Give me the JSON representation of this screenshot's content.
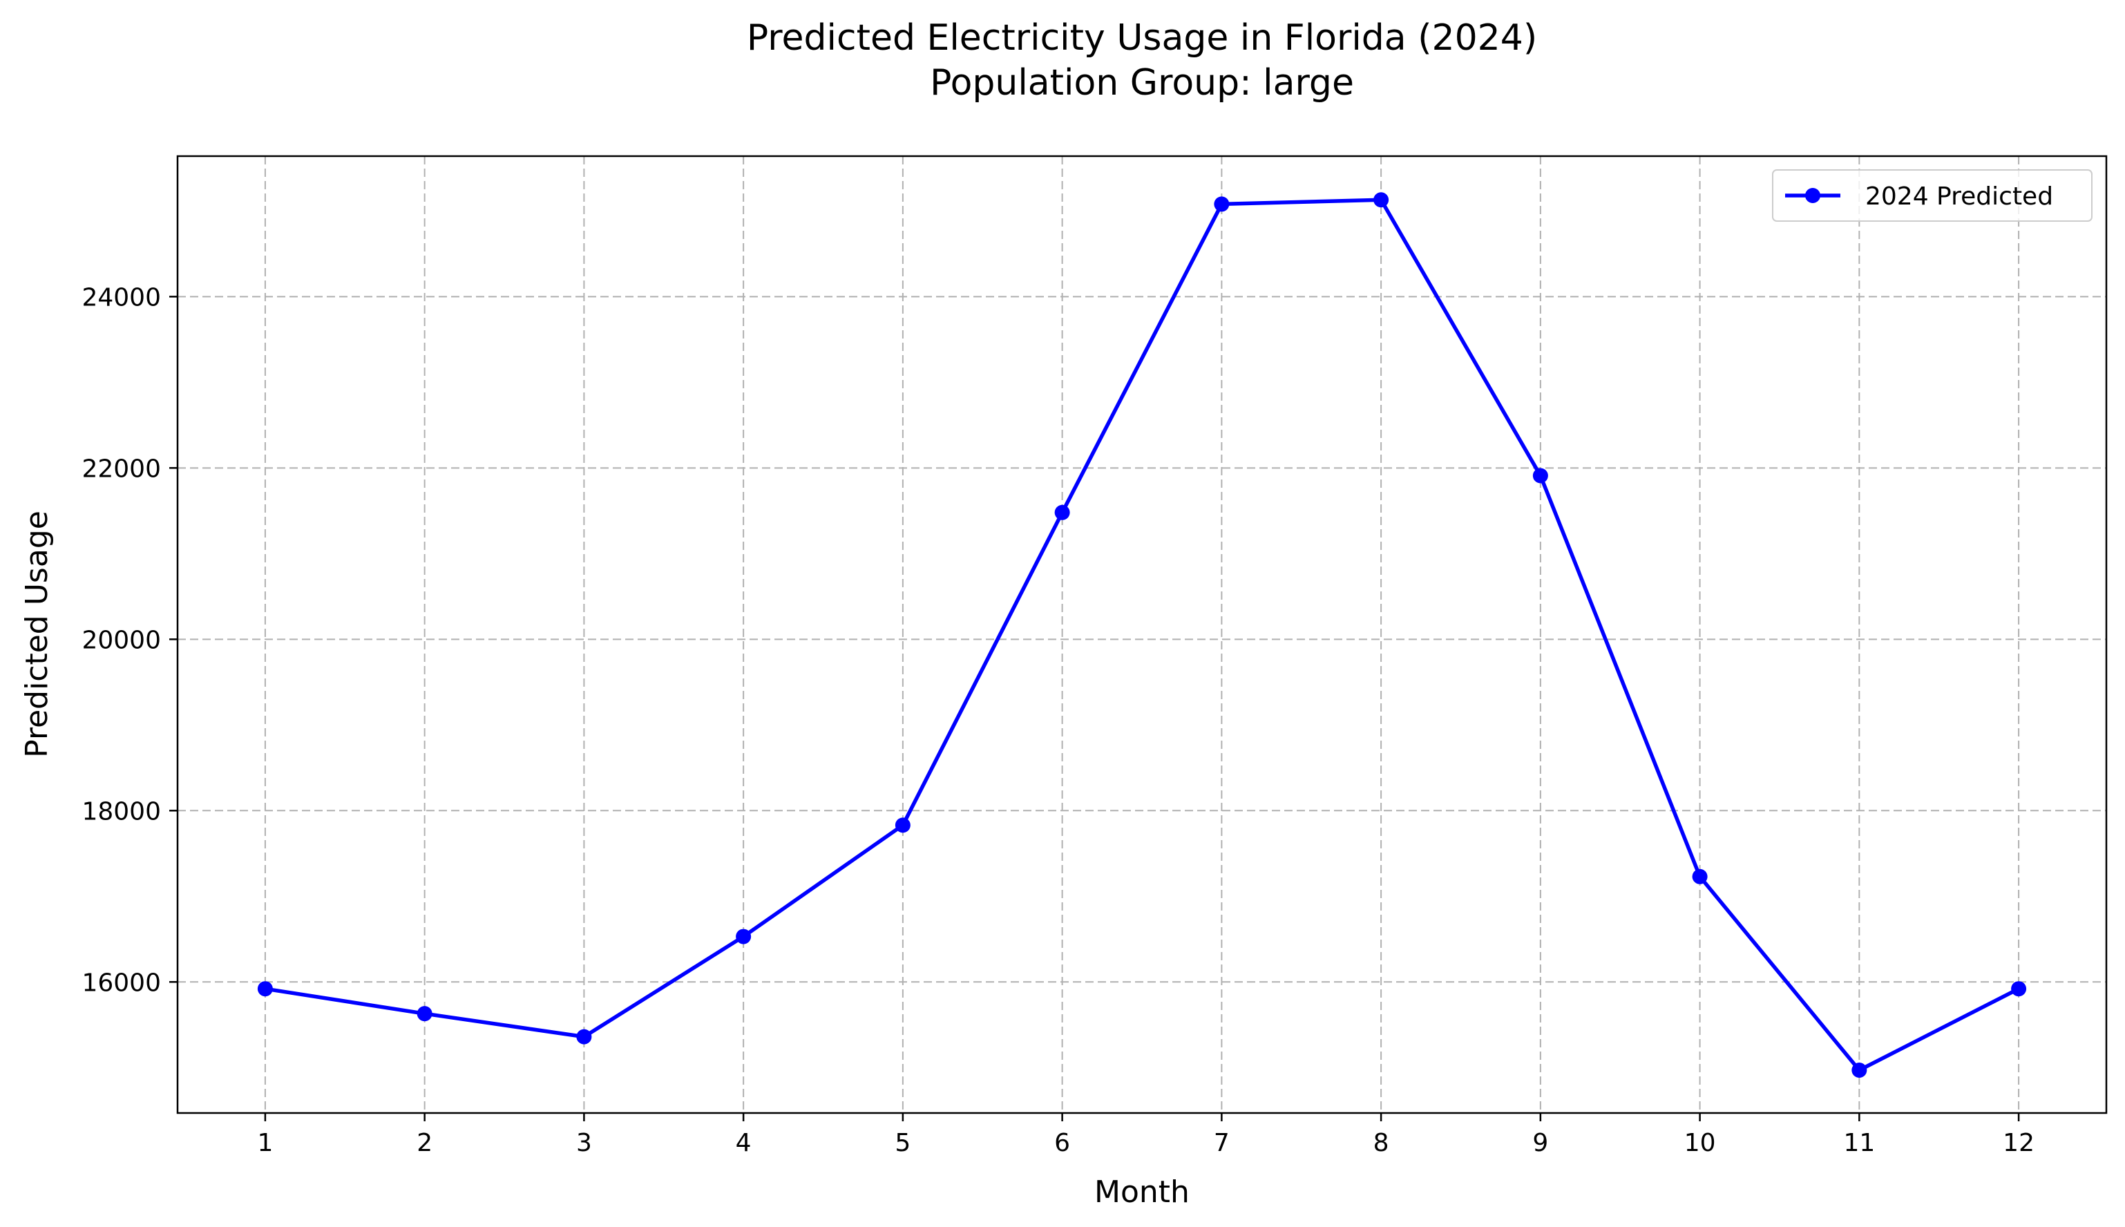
{
  "chart_data": {
    "type": "line",
    "title_line1": "Predicted Electricity Usage in Florida (2024)",
    "title_line2": "Population Group: large",
    "xlabel": "Month",
    "ylabel": "Predicted Usage",
    "x": [
      1,
      2,
      3,
      4,
      5,
      6,
      7,
      8,
      9,
      10,
      11,
      12
    ],
    "x_tick_labels": [
      "1",
      "2",
      "3",
      "4",
      "5",
      "6",
      "7",
      "8",
      "9",
      "10",
      "11",
      "12"
    ],
    "y_ticks": [
      16000,
      18000,
      20000,
      22000,
      24000
    ],
    "y_tick_labels": [
      "16000",
      "18000",
      "20000",
      "22000",
      "24000"
    ],
    "xlim": [
      0.45,
      12.55
    ],
    "ylim": [
      14470,
      25640
    ],
    "grid": true,
    "legend_position": "top-right",
    "series": [
      {
        "name": "2024 Predicted",
        "color": "#0000ff",
        "marker": "circle",
        "values": [
          15920,
          15630,
          15360,
          16530,
          17830,
          21480,
          25080,
          25130,
          21910,
          17230,
          14970,
          15920
        ]
      }
    ]
  }
}
